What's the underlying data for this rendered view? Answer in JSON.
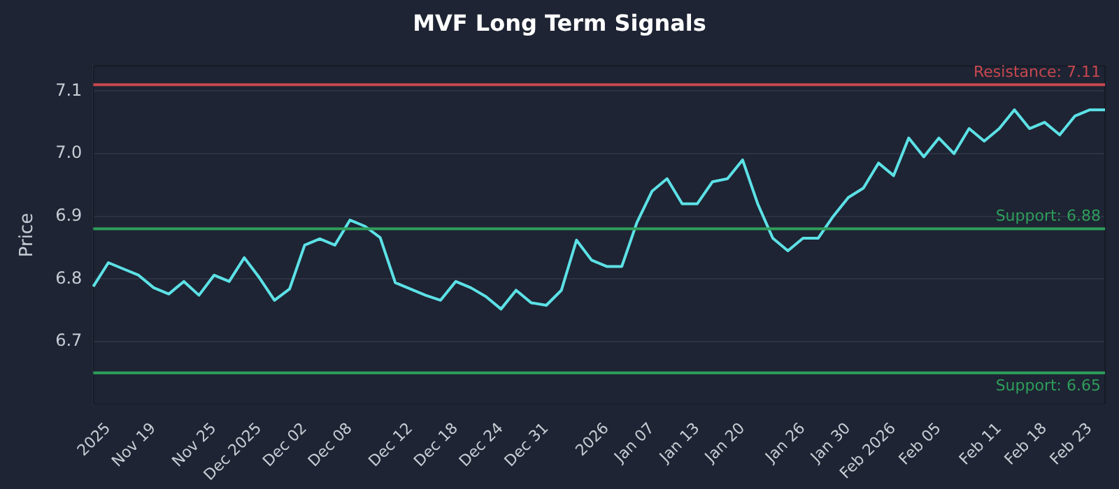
{
  "chart_data": {
    "type": "line",
    "title": "MVF Long Term Signals",
    "ylabel": "Price",
    "categories": [
      null,
      "2025",
      null,
      null,
      "Nov 19",
      null,
      null,
      null,
      "Nov 25",
      null,
      null,
      "Dec 2025",
      null,
      null,
      "Dec 02",
      null,
      null,
      "Dec 08",
      null,
      null,
      null,
      "Dec 12",
      null,
      null,
      "Dec 18",
      null,
      null,
      "Dec 24",
      null,
      null,
      "Dec 31",
      null,
      null,
      null,
      "2026",
      null,
      null,
      "Jan 07",
      null,
      null,
      "Jan 13",
      null,
      null,
      "Jan 20",
      null,
      null,
      null,
      "Jan 26",
      null,
      null,
      "Jan 30",
      null,
      null,
      "Feb 2026",
      null,
      null,
      "Feb 05",
      null,
      null,
      null,
      "Feb 11",
      null,
      null,
      "Feb 18",
      null,
      null,
      "Feb 23",
      null
    ],
    "series": [
      {
        "color": "#5ce1e6",
        "values": [
          6.788,
          6.826,
          6.816,
          6.806,
          6.786,
          6.776,
          6.796,
          6.774,
          6.806,
          6.796,
          6.834,
          6.802,
          6.766,
          6.784,
          6.854,
          6.864,
          6.854,
          6.894,
          6.884,
          6.866,
          6.794,
          6.784,
          6.774,
          6.766,
          6.796,
          6.786,
          6.772,
          6.752,
          6.782,
          6.762,
          6.758,
          6.782,
          6.862,
          6.83,
          6.82,
          6.82,
          6.89,
          6.94,
          6.96,
          6.92,
          6.92,
          6.955,
          6.96,
          6.99,
          6.92,
          6.865,
          6.845,
          6.865,
          6.865,
          6.9,
          6.93,
          6.945,
          6.985,
          6.965,
          7.025,
          6.995,
          7.025,
          7.0,
          7.04,
          7.02,
          7.04,
          7.07,
          7.04,
          7.05,
          7.03,
          7.06,
          7.07,
          7.07
        ]
      }
    ],
    "ylim": [
      6.6,
      7.14
    ],
    "yticks": [
      6.7,
      6.8,
      6.9,
      {
        "value": 7.0,
        "label": "7.0"
      },
      7.1
    ],
    "grid": "y",
    "legend": false,
    "marker": "none",
    "line_style": "solid",
    "ref_lines": [
      {
        "axis": "y",
        "value": 7.11,
        "label": "Resistance: 7.11",
        "color": "#c8474f"
      },
      {
        "axis": "y",
        "value": 6.88,
        "label": "Support: 6.88",
        "color": "#2e9e5b"
      },
      {
        "axis": "y",
        "value": 6.65,
        "label": "Support: 6.65",
        "color": "#2e9e5b"
      }
    ]
  }
}
